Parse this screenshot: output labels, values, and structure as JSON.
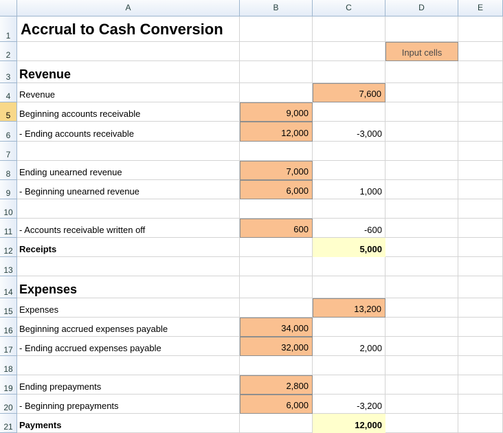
{
  "columns": [
    "A",
    "B",
    "C",
    "D",
    "E"
  ],
  "rows": [
    "1",
    "2",
    "3",
    "4",
    "5",
    "6",
    "7",
    "8",
    "9",
    "10",
    "11",
    "12",
    "13",
    "14",
    "15",
    "16",
    "17",
    "18",
    "19",
    "20",
    "21"
  ],
  "title": "Accrual to Cash Conversion",
  "legend_label": "Input cells",
  "revenue": {
    "heading": "Revenue",
    "revenue_label": "Revenue",
    "revenue_value": "7,600",
    "beg_ar_label": "Beginning accounts receivable",
    "beg_ar_value": "9,000",
    "end_ar_label": "- Ending accounts receivable",
    "end_ar_value": "12,000",
    "ar_change": "-3,000",
    "end_unearned_label": "Ending unearned revenue",
    "end_unearned_value": "7,000",
    "beg_unearned_label": "- Beginning unearned revenue",
    "beg_unearned_value": "6,000",
    "unearned_change": "1,000",
    "written_off_label": "- Accounts receivable written off",
    "written_off_value": "600",
    "written_off_change": "-600",
    "receipts_label": "Receipts",
    "receipts_value": "5,000"
  },
  "expenses": {
    "heading": "Expenses",
    "expenses_label": "Expenses",
    "expenses_value": "13,200",
    "beg_accrued_label": "Beginning accrued expenses payable",
    "beg_accrued_value": "34,000",
    "end_accrued_label": "- Ending accrued expenses payable",
    "end_accrued_value": "32,000",
    "accrued_change": "2,000",
    "end_prepay_label": "Ending prepayments",
    "end_prepay_value": "2,800",
    "beg_prepay_label": "- Beginning prepayments",
    "beg_prepay_value": "6,000",
    "prepay_change": "-3,200",
    "payments_label": "Payments",
    "payments_value": "12,000"
  },
  "colors": {
    "input_fill": "#fac090",
    "output_fill": "#ffffcc",
    "header_fill": "#e4ecf7",
    "selected_row_header": "#f8d889"
  }
}
